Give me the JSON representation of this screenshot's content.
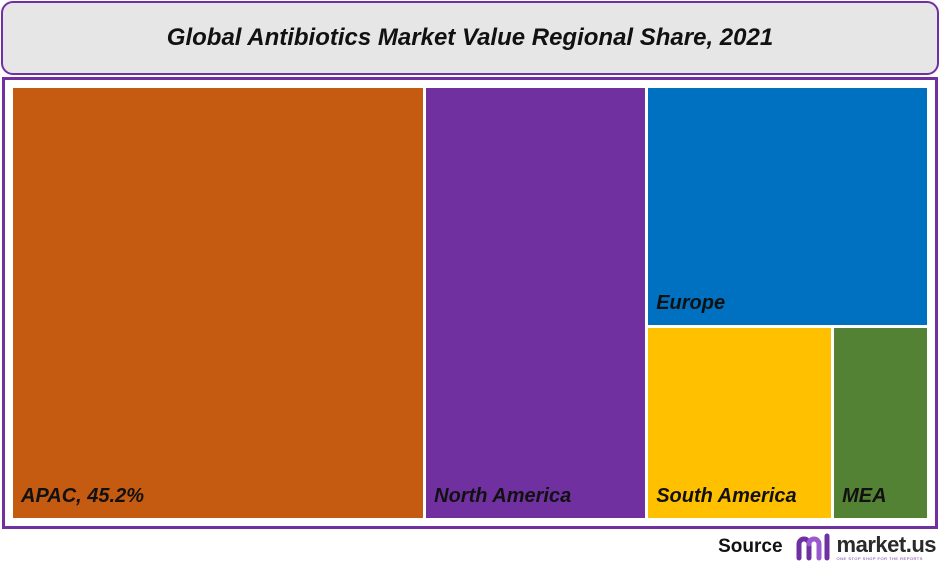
{
  "chart_data": {
    "type": "treemap",
    "title": "Global Antibiotics Market Value Regional Share, 2021",
    "tiles": [
      {
        "label": "APAC, 45.2%",
        "region": "APAC",
        "value": 45.2,
        "color": "#c55a11"
      },
      {
        "label": "North America",
        "region": "North America",
        "value": 24.3,
        "color": "#7030a0"
      },
      {
        "label": "Europe",
        "region": "Europe",
        "value": 17.0,
        "color": "#0070c0"
      },
      {
        "label": "South America",
        "region": "South America",
        "value": 9.0,
        "color": "#ffc000"
      },
      {
        "label": "MEA",
        "region": "MEA",
        "value": 4.5,
        "color": "#548235"
      }
    ]
  },
  "frame_color": "#7030a0",
  "source": {
    "label": "Source",
    "logo_text": "market.us",
    "logo_tagline": "ONE STOP SHOP FOR THE REPORTS"
  }
}
